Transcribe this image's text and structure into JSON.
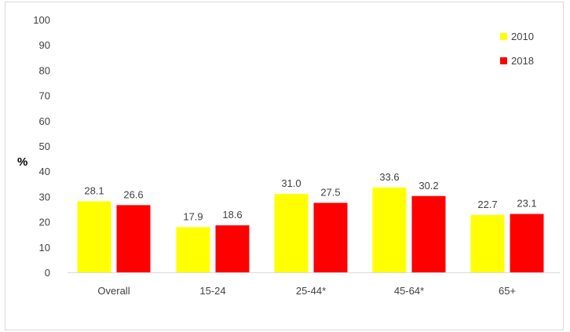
{
  "chart_data": {
    "type": "bar",
    "categories": [
      "Overall",
      "15-24",
      "25-44*",
      "45-64*",
      "65+"
    ],
    "series": [
      {
        "name": "2010",
        "color": "#ffff00",
        "values": [
          28.1,
          17.9,
          31.0,
          33.6,
          22.7
        ],
        "labels": [
          "28.1",
          "17.9",
          "31.0",
          "33.6",
          "22.7"
        ]
      },
      {
        "name": "2018",
        "color": "#ff0000",
        "values": [
          26.6,
          18.6,
          27.5,
          30.2,
          23.1
        ],
        "labels": [
          "26.6",
          "18.6",
          "27.5",
          "30.2",
          "23.1"
        ]
      }
    ],
    "ylabel": "%",
    "ylim": [
      0,
      100
    ],
    "yticks": [
      "0",
      "10",
      "20",
      "30",
      "40",
      "50",
      "60",
      "70",
      "80",
      "90",
      "100"
    ],
    "legend_position": "top-right",
    "grid": false
  }
}
